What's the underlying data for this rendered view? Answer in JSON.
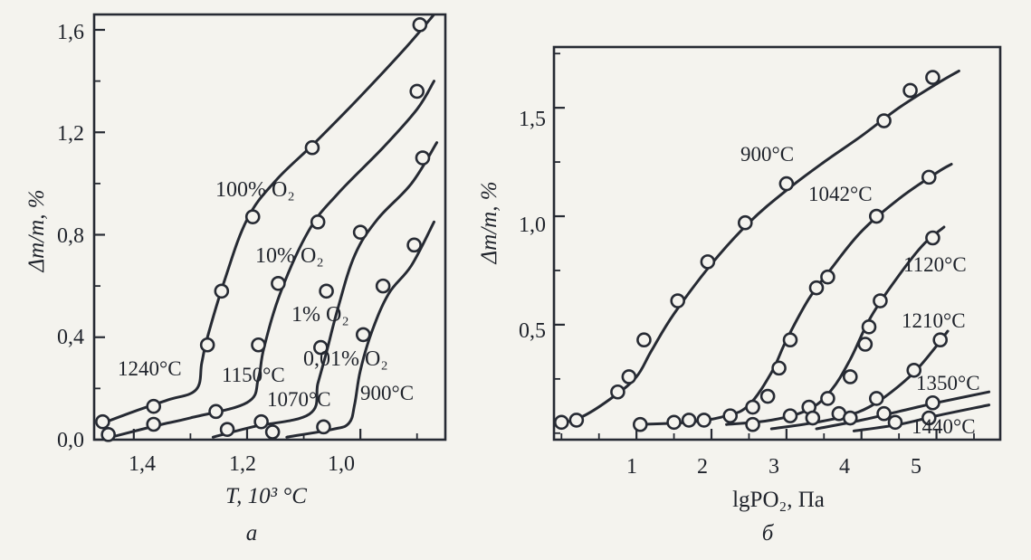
{
  "chart_data": [
    {
      "type": "line",
      "panel_label": "а",
      "xlabel": "T, 10³ °C",
      "ylabel": "Δm/m, %",
      "xlim": [
        1.47,
        0.85
      ],
      "ylim": [
        0.0,
        1.66
      ],
      "xticks": [
        1.4,
        1.2,
        1.0
      ],
      "xtick_labels": [
        "1,4",
        "1,2",
        "1,0"
      ],
      "yticks": [
        0.0,
        0.4,
        0.8,
        1.2,
        1.6
      ],
      "ytick_labels": [
        "0,0",
        "0,4",
        "0,8",
        "1,2",
        "1,6"
      ],
      "grid": false,
      "series": [
        {
          "name": "100% O₂",
          "temperature_label": "1240°C",
          "curve": [
            [
              1.46,
              0.06
            ],
            [
              1.4,
              0.11
            ],
            [
              1.34,
              0.155
            ],
            [
              1.29,
              0.195
            ],
            [
              1.28,
              0.3
            ],
            [
              1.27,
              0.4
            ],
            [
              1.24,
              0.62
            ],
            [
              1.2,
              0.86
            ],
            [
              1.15,
              1.01
            ],
            [
              1.08,
              1.16
            ],
            [
              1.0,
              1.34
            ],
            [
              0.92,
              1.53
            ],
            [
              0.87,
              1.66
            ]
          ],
          "points": [
            [
              1.455,
              0.07
            ],
            [
              1.365,
              0.13
            ],
            [
              1.27,
              0.37
            ],
            [
              1.245,
              0.58
            ],
            [
              1.19,
              0.87
            ],
            [
              1.085,
              1.14
            ],
            [
              0.895,
              1.62
            ]
          ]
        },
        {
          "name": "10% O₂",
          "temperature_label": "1150°C",
          "curve": [
            [
              1.44,
              0.01
            ],
            [
              1.36,
              0.055
            ],
            [
              1.3,
              0.085
            ],
            [
              1.2,
              0.145
            ],
            [
              1.18,
              0.24
            ],
            [
              1.17,
              0.36
            ],
            [
              1.14,
              0.58
            ],
            [
              1.09,
              0.82
            ],
            [
              1.04,
              0.96
            ],
            [
              0.96,
              1.14
            ],
            [
              0.9,
              1.29
            ],
            [
              0.87,
              1.4
            ]
          ],
          "points": [
            [
              1.445,
              0.02
            ],
            [
              1.365,
              0.06
            ],
            [
              1.255,
              0.11
            ],
            [
              1.18,
              0.37
            ],
            [
              1.145,
              0.61
            ],
            [
              1.075,
              0.85
            ],
            [
              0.9,
              1.36
            ]
          ]
        },
        {
          "name": "1% O₂",
          "temperature_label": "1070°C",
          "curve": [
            [
              1.26,
              0.01
            ],
            [
              1.19,
              0.05
            ],
            [
              1.09,
              0.1
            ],
            [
              1.075,
              0.22
            ],
            [
              1.06,
              0.34
            ],
            [
              1.04,
              0.51
            ],
            [
              1.01,
              0.72
            ],
            [
              0.97,
              0.86
            ],
            [
              0.91,
              1.0
            ],
            [
              0.865,
              1.16
            ]
          ],
          "points": [
            [
              1.235,
              0.04
            ],
            [
              1.175,
              0.07
            ],
            [
              1.155,
              0.03
            ],
            [
              1.07,
              0.36
            ],
            [
              1.06,
              0.58
            ],
            [
              1.0,
              0.81
            ],
            [
              0.89,
              1.1
            ]
          ]
        },
        {
          "name": "0,01% O₂",
          "temperature_label": "900°C",
          "curve": [
            [
              1.13,
              0.01
            ],
            [
              1.05,
              0.04
            ],
            [
              1.02,
              0.065
            ],
            [
              1.01,
              0.14
            ],
            [
              1.0,
              0.27
            ],
            [
              0.98,
              0.42
            ],
            [
              0.95,
              0.57
            ],
            [
              0.91,
              0.68
            ],
            [
              0.87,
              0.85
            ]
          ],
          "points": [
            [
              1.065,
              0.05
            ],
            [
              0.995,
              0.41
            ],
            [
              0.96,
              0.6
            ],
            [
              0.905,
              0.76
            ]
          ]
        }
      ]
    },
    {
      "type": "line",
      "panel_label": "б",
      "xlabel": "lgPO₂, Па",
      "ylabel": "Δm/m, %",
      "xlim": [
        -0.1,
        5.85
      ],
      "ylim": [
        -0.03,
        1.78
      ],
      "xticks": [
        1,
        2,
        3,
        4,
        5
      ],
      "xtick_labels": [
        "1",
        "2",
        "3",
        "4",
        "5"
      ],
      "yticks": [
        0.5,
        1.0,
        1.5
      ],
      "ytick_labels": [
        "0,5",
        "1,0",
        "1,5"
      ],
      "grid": false,
      "series": [
        {
          "name": "900°C",
          "curve": [
            [
              -0.05,
              0.04
            ],
            [
              0.3,
              0.08
            ],
            [
              0.7,
              0.17
            ],
            [
              1.0,
              0.26
            ],
            [
              1.2,
              0.38
            ],
            [
              1.5,
              0.55
            ],
            [
              2.0,
              0.78
            ],
            [
              2.5,
              0.97
            ],
            [
              3.0,
              1.12
            ],
            [
              3.5,
              1.25
            ],
            [
              4.0,
              1.37
            ],
            [
              4.5,
              1.5
            ],
            [
              5.0,
              1.61
            ],
            [
              5.3,
              1.67
            ]
          ],
          "points": [
            [
              0.0,
              0.05
            ],
            [
              0.2,
              0.06
            ],
            [
              0.75,
              0.19
            ],
            [
              0.9,
              0.26
            ],
            [
              1.1,
              0.43
            ],
            [
              1.55,
              0.61
            ],
            [
              1.95,
              0.79
            ],
            [
              2.45,
              0.97
            ],
            [
              3.0,
              1.15
            ],
            [
              4.3,
              1.44
            ],
            [
              4.65,
              1.58
            ],
            [
              4.95,
              1.64
            ]
          ]
        },
        {
          "name": "1042°C",
          "curve": [
            [
              1.0,
              0.04
            ],
            [
              1.7,
              0.05
            ],
            [
              2.2,
              0.08
            ],
            [
              2.5,
              0.13
            ],
            [
              2.8,
              0.28
            ],
            [
              3.0,
              0.43
            ],
            [
              3.3,
              0.62
            ],
            [
              3.6,
              0.76
            ],
            [
              4.0,
              0.93
            ],
            [
              4.5,
              1.08
            ],
            [
              5.0,
              1.2
            ],
            [
              5.2,
              1.24
            ]
          ],
          "points": [
            [
              1.05,
              0.04
            ],
            [
              1.5,
              0.05
            ],
            [
              1.7,
              0.06
            ],
            [
              1.9,
              0.06
            ],
            [
              2.25,
              0.08
            ],
            [
              2.55,
              0.12
            ],
            [
              2.75,
              0.17
            ],
            [
              2.9,
              0.3
            ],
            [
              3.05,
              0.43
            ],
            [
              3.4,
              0.67
            ],
            [
              3.55,
              0.72
            ],
            [
              4.2,
              1.0
            ],
            [
              4.9,
              1.18
            ]
          ]
        },
        {
          "name": "1120°C",
          "curve": [
            [
              2.2,
              0.04
            ],
            [
              2.8,
              0.06
            ],
            [
              3.3,
              0.11
            ],
            [
              3.6,
              0.2
            ],
            [
              3.85,
              0.34
            ],
            [
              4.1,
              0.52
            ],
            [
              4.4,
              0.68
            ],
            [
              4.8,
              0.86
            ],
            [
              5.1,
              0.95
            ]
          ],
          "points": [
            [
              2.55,
              0.04
            ],
            [
              3.05,
              0.08
            ],
            [
              3.3,
              0.12
            ],
            [
              3.55,
              0.16
            ],
            [
              3.85,
              0.26
            ],
            [
              4.05,
              0.41
            ],
            [
              4.1,
              0.49
            ],
            [
              4.25,
              0.61
            ],
            [
              4.95,
              0.9
            ]
          ]
        },
        {
          "name": "1210°C",
          "curve": [
            [
              2.8,
              0.02
            ],
            [
              3.4,
              0.05
            ],
            [
              3.8,
              0.08
            ],
            [
              4.1,
              0.12
            ],
            [
              4.4,
              0.19
            ],
            [
              4.7,
              0.28
            ],
            [
              4.95,
              0.38
            ],
            [
              5.15,
              0.47
            ]
          ],
          "points": [
            [
              3.35,
              0.07
            ],
            [
              3.7,
              0.09
            ],
            [
              4.2,
              0.16
            ],
            [
              4.7,
              0.29
            ],
            [
              5.05,
              0.43
            ]
          ]
        },
        {
          "name": "1350°C",
          "curve": [
            [
              3.4,
              0.02
            ],
            [
              4.0,
              0.06
            ],
            [
              4.5,
              0.1
            ],
            [
              5.0,
              0.14
            ],
            [
              5.7,
              0.19
            ]
          ],
          "points": [
            [
              3.85,
              0.07
            ],
            [
              4.3,
              0.09
            ],
            [
              4.95,
              0.14
            ]
          ]
        },
        {
          "name": "1440°C",
          "curve": [
            [
              3.9,
              0.01
            ],
            [
              4.5,
              0.04
            ],
            [
              5.0,
              0.08
            ],
            [
              5.7,
              0.13
            ]
          ],
          "points": [
            [
              4.45,
              0.05
            ],
            [
              4.9,
              0.07
            ]
          ]
        }
      ]
    }
  ]
}
